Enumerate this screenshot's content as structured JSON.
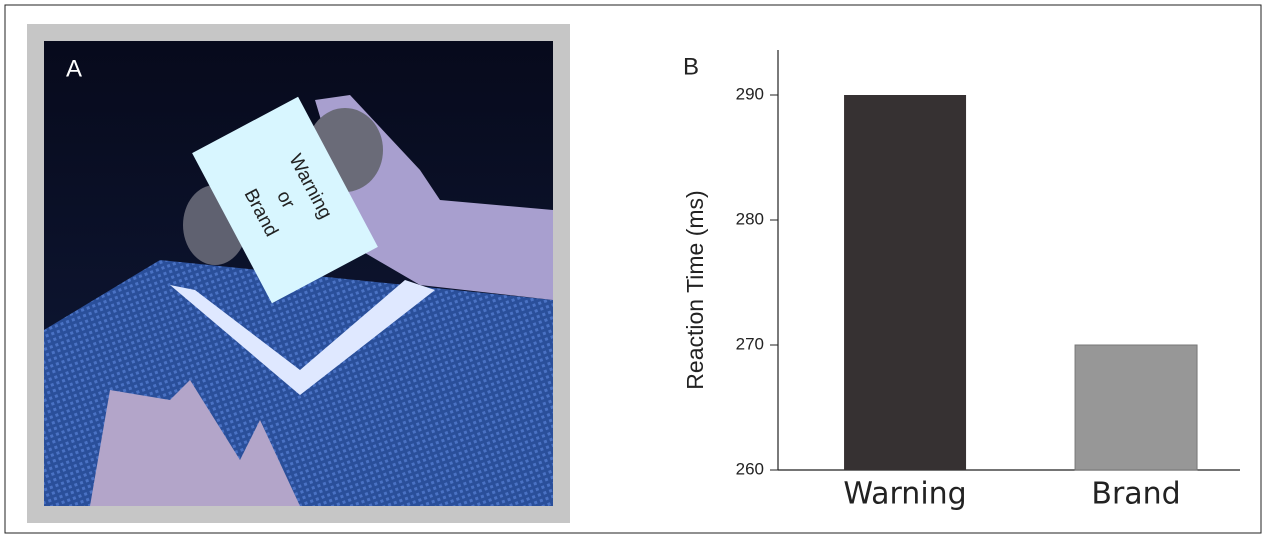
{
  "panel_a": {
    "label": "A",
    "box_text": [
      "Warning",
      "or",
      "Brand"
    ]
  },
  "chart_data": {
    "type": "bar",
    "panel_label": "B",
    "y_label": "Reaction Time (ms)",
    "categories": [
      "Warning",
      "Brand"
    ],
    "values": [
      290,
      270
    ],
    "colors": [
      "#363132",
      "#979797"
    ],
    "ylim": [
      260,
      293.6
    ],
    "yticks": [
      260,
      270,
      280,
      290
    ]
  }
}
